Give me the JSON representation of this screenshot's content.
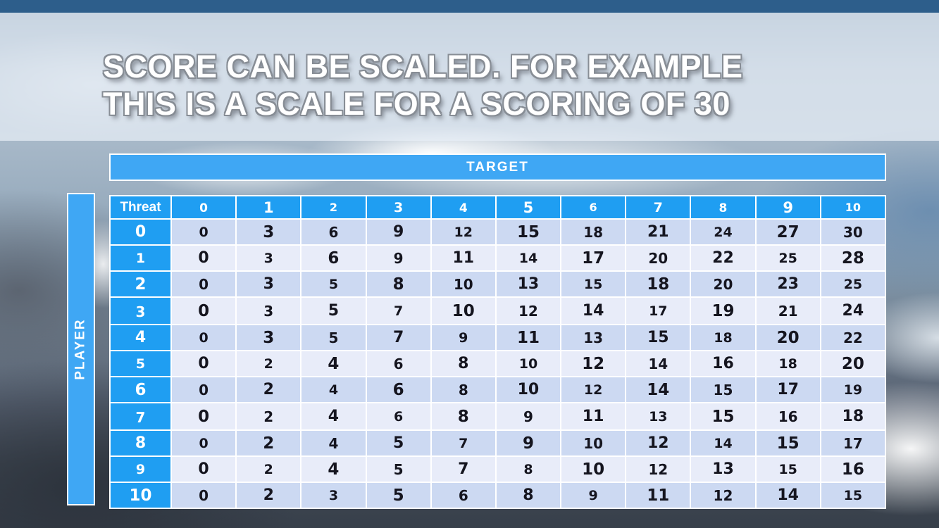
{
  "title": {
    "line1": "SCORE CAN BE SCALED. FOR EXAMPLE",
    "line2": "THIS IS A SCALE FOR A SCORING OF 30"
  },
  "matrix": {
    "target_label": "TARGET",
    "player_label": "PLAYER",
    "threat_label": "Threat",
    "column_headers": [
      "0",
      "1",
      "2",
      "3",
      "4",
      "5",
      "6",
      "7",
      "8",
      "9",
      "10"
    ],
    "rows": [
      {
        "header": "0",
        "values": [
          0,
          3,
          6,
          9,
          12,
          15,
          18,
          21,
          24,
          27,
          30
        ]
      },
      {
        "header": "1",
        "values": [
          0,
          3,
          6,
          9,
          11,
          14,
          17,
          20,
          22,
          25,
          28
        ]
      },
      {
        "header": "2",
        "values": [
          0,
          3,
          5,
          8,
          10,
          13,
          15,
          18,
          20,
          23,
          25
        ]
      },
      {
        "header": "3",
        "values": [
          0,
          3,
          5,
          7,
          10,
          12,
          14,
          17,
          19,
          21,
          24
        ]
      },
      {
        "header": "4",
        "values": [
          0,
          3,
          5,
          7,
          9,
          11,
          13,
          15,
          18,
          20,
          22
        ]
      },
      {
        "header": "5",
        "values": [
          0,
          2,
          4,
          6,
          8,
          10,
          12,
          14,
          16,
          18,
          20
        ]
      },
      {
        "header": "6",
        "values": [
          0,
          2,
          4,
          6,
          8,
          10,
          12,
          14,
          15,
          17,
          19
        ]
      },
      {
        "header": "7",
        "values": [
          0,
          2,
          4,
          6,
          8,
          9,
          11,
          13,
          15,
          16,
          18
        ]
      },
      {
        "header": "8",
        "values": [
          0,
          2,
          4,
          5,
          7,
          9,
          10,
          12,
          14,
          15,
          17
        ]
      },
      {
        "header": "9",
        "values": [
          0,
          2,
          4,
          5,
          7,
          8,
          10,
          12,
          13,
          15,
          16
        ]
      },
      {
        "header": "10",
        "values": [
          0,
          2,
          3,
          5,
          6,
          8,
          9,
          11,
          12,
          14,
          15
        ]
      }
    ]
  },
  "colors": {
    "cell_blue": "#1f9ef2",
    "bar_blue": "#3fa7f4",
    "row_even": "#ccd9f2",
    "row_odd": "#e8ecf9",
    "ink": "#15151f",
    "top_strip": "#2d5e8b"
  }
}
